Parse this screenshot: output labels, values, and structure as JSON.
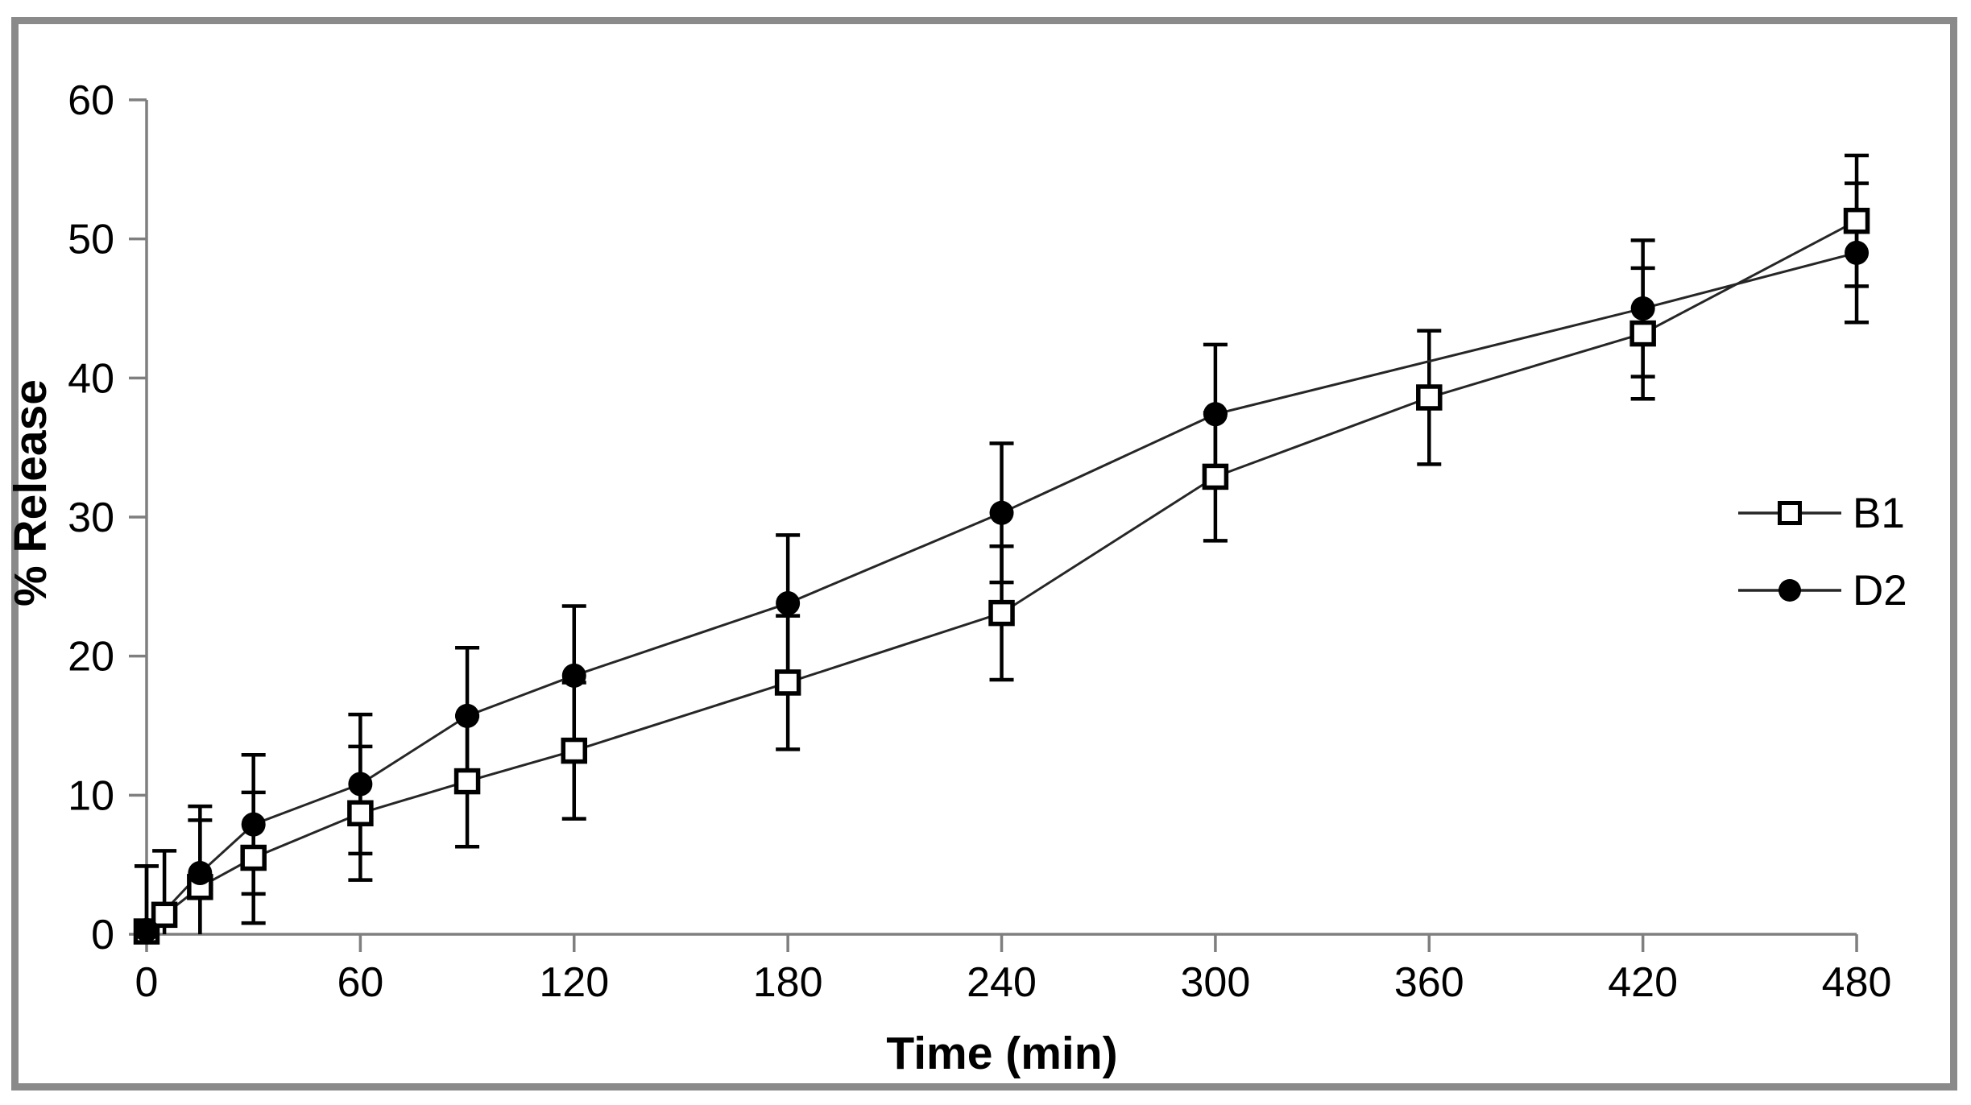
{
  "figure": {
    "background": "#ffffff",
    "border_color": "#8a8a8a",
    "axis_color": "#7f7f7f",
    "series_line_color": "#262626",
    "error_bar_color": "#000000",
    "marker_color": "#000000"
  },
  "chart_data": {
    "type": "line",
    "title": "",
    "xlabel": "Time (min)",
    "ylabel": "% Release",
    "xlim": [
      0,
      480
    ],
    "ylim": [
      0,
      60
    ],
    "x_ticks": [
      0,
      60,
      120,
      180,
      240,
      300,
      360,
      420,
      480
    ],
    "y_ticks": [
      0,
      10,
      20,
      30,
      40,
      50,
      60
    ],
    "grid": false,
    "error_bars": true,
    "legend_position": "middle-right",
    "series": [
      {
        "name": "B1",
        "marker": "open-square",
        "points": [
          {
            "x": 0,
            "y": 0.2,
            "err": 4.7
          },
          {
            "x": 5,
            "y": 1.4,
            "err": 4.6
          },
          {
            "x": 15,
            "y": 3.4,
            "err": 4.8
          },
          {
            "x": 30,
            "y": 5.5,
            "err": 4.7
          },
          {
            "x": 60,
            "y": 8.7,
            "err": 4.8
          },
          {
            "x": 90,
            "y": 11.0,
            "err": 4.7
          },
          {
            "x": 120,
            "y": 13.2,
            "err": 4.9
          },
          {
            "x": 180,
            "y": 18.1,
            "err": 4.8
          },
          {
            "x": 240,
            "y": 23.1,
            "err": 4.8
          },
          {
            "x": 300,
            "y": 32.9,
            "err": 4.6
          },
          {
            "x": 360,
            "y": 38.6,
            "err": 4.8
          },
          {
            "x": 420,
            "y": 43.2,
            "err": 4.7
          },
          {
            "x": 480,
            "y": 51.3,
            "err": 4.7
          }
        ]
      },
      {
        "name": "D2",
        "marker": "filled-circle",
        "points": [
          {
            "x": 0,
            "y": 0.3,
            "err": 4.6
          },
          {
            "x": 15,
            "y": 4.4,
            "err": 4.8
          },
          {
            "x": 30,
            "y": 7.9,
            "err": 5.0
          },
          {
            "x": 60,
            "y": 10.8,
            "err": 5.0
          },
          {
            "x": 90,
            "y": 15.7,
            "err": 4.9
          },
          {
            "x": 120,
            "y": 18.6,
            "err": 5.0
          },
          {
            "x": 180,
            "y": 23.8,
            "err": 4.9
          },
          {
            "x": 240,
            "y": 30.3,
            "err": 5.0
          },
          {
            "x": 300,
            "y": 37.4,
            "err": 5.0
          },
          {
            "x": 420,
            "y": 45.0,
            "err": 4.9
          },
          {
            "x": 480,
            "y": 49.0,
            "err": 5.0
          }
        ]
      }
    ]
  }
}
